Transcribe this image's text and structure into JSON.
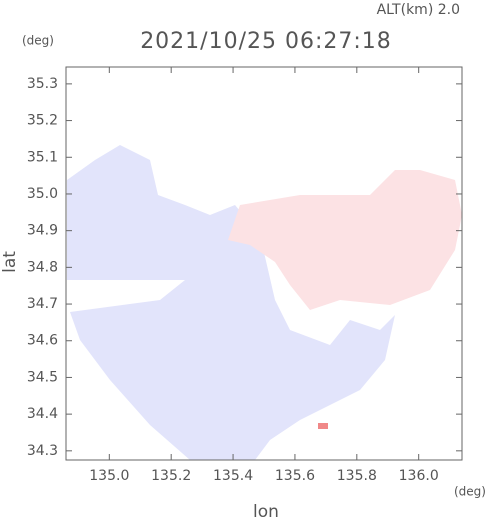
{
  "chart_data": {
    "type": "map",
    "title": "2021/10/25 06:27:18",
    "subtitle": "ALT(km) 2.0",
    "x_label": "lon",
    "y_label": "lat",
    "x_unit": "(deg)",
    "y_unit": "(deg)",
    "xlim": [
      134.86,
      136.14
    ],
    "xticks": [
      {
        "value": 135.0,
        "label": "135.0"
      },
      135.2,
      135.4,
      135.6,
      135.8,
      {
        "value": 136.0,
        "label": "136.0"
      }
    ],
    "ylim": [
      34.275,
      35.346
    ],
    "yticks": [
      34.3,
      34.4,
      34.5,
      34.6,
      34.7,
      34.8,
      34.9,
      {
        "value": 35.0,
        "label": "35.0"
      },
      35.1,
      35.2,
      35.3
    ]
  }
}
